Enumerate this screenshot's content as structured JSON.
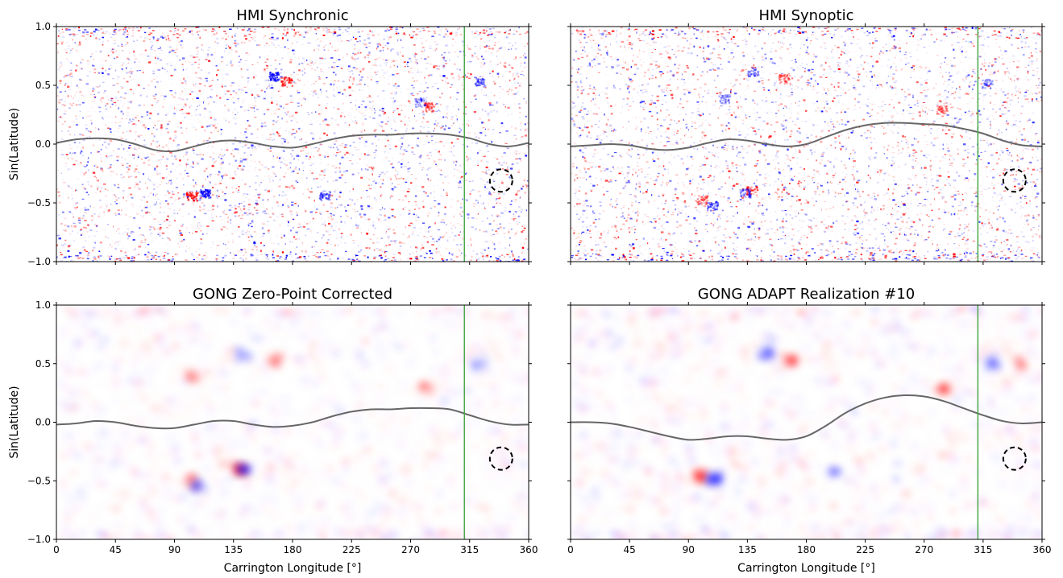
{
  "figure": {
    "colors": {
      "positive": "#ff0000",
      "negative": "#0000ff",
      "neutral_line": "#666666",
      "meridian_line": "#4aa84a",
      "circle": "#000000"
    }
  },
  "chart_data": [
    {
      "type": "heatmap",
      "title": "HMI Synchronic",
      "xlabel": "",
      "ylabel": "Sin(Latitude)",
      "xlim": [
        0,
        360
      ],
      "ylim": [
        -1.0,
        1.0
      ],
      "xticks": [
        "0",
        "45",
        "90",
        "135",
        "180",
        "225",
        "270",
        "315",
        "360"
      ],
      "yticks": [
        "1.0",
        "0.5",
        "0.0",
        "−0.5",
        "−1.0"
      ],
      "vertical_line_x": 311,
      "circle": {
        "x": 339,
        "y": -0.31
      },
      "neutral_line": {
        "x": [
          0,
          15,
          30,
          45,
          60,
          75,
          90,
          105,
          120,
          135,
          150,
          165,
          180,
          195,
          210,
          225,
          240,
          255,
          270,
          285,
          300,
          315,
          330,
          345,
          360
        ],
        "y": [
          0.01,
          0.04,
          0.05,
          0.04,
          0.0,
          -0.05,
          -0.06,
          -0.02,
          0.02,
          0.03,
          0.01,
          -0.02,
          -0.03,
          0.0,
          0.04,
          0.07,
          0.08,
          0.08,
          0.09,
          0.09,
          0.08,
          0.05,
          0.0,
          -0.02,
          0.01
        ]
      },
      "active_regions": [
        {
          "x": 165,
          "y": 0.58,
          "polarity": "negative",
          "strength": 0.9
        },
        {
          "x": 175,
          "y": 0.54,
          "polarity": "positive",
          "strength": 0.8
        },
        {
          "x": 103,
          "y": -0.44,
          "polarity": "positive",
          "strength": 0.9
        },
        {
          "x": 113,
          "y": -0.42,
          "polarity": "negative",
          "strength": 1.0
        },
        {
          "x": 204,
          "y": -0.43,
          "polarity": "negative",
          "strength": 0.6
        },
        {
          "x": 283,
          "y": 0.32,
          "polarity": "positive",
          "strength": 0.6
        },
        {
          "x": 277,
          "y": 0.36,
          "polarity": "negative",
          "strength": 0.4
        },
        {
          "x": 322,
          "y": 0.53,
          "polarity": "negative",
          "strength": 0.5
        }
      ]
    },
    {
      "type": "heatmap",
      "title": "HMI Synoptic",
      "xlabel": "",
      "ylabel": "",
      "xlim": [
        0,
        360
      ],
      "ylim": [
        -1.0,
        1.0
      ],
      "xticks": [
        "0",
        "45",
        "90",
        "135",
        "180",
        "225",
        "270",
        "315",
        "360"
      ],
      "yticks": [
        "1.0",
        "0.5",
        "0.0",
        "−0.5",
        "−1.0"
      ],
      "vertical_line_x": 311,
      "circle": {
        "x": 339,
        "y": -0.31
      },
      "neutral_line": {
        "x": [
          0,
          15,
          30,
          45,
          60,
          75,
          90,
          105,
          120,
          135,
          150,
          165,
          180,
          195,
          210,
          225,
          240,
          255,
          270,
          285,
          300,
          315,
          330,
          345,
          360
        ],
        "y": [
          -0.02,
          -0.01,
          0.0,
          -0.01,
          -0.04,
          -0.05,
          -0.03,
          0.01,
          0.04,
          0.03,
          0.0,
          -0.02,
          0.0,
          0.06,
          0.12,
          0.16,
          0.18,
          0.18,
          0.17,
          0.16,
          0.13,
          0.09,
          0.03,
          -0.01,
          -0.02
        ]
      },
      "active_regions": [
        {
          "x": 138,
          "y": -0.39,
          "polarity": "positive",
          "strength": 0.6
        },
        {
          "x": 133,
          "y": -0.41,
          "polarity": "negative",
          "strength": 0.5
        },
        {
          "x": 100,
          "y": -0.47,
          "polarity": "positive",
          "strength": 0.5
        },
        {
          "x": 108,
          "y": -0.52,
          "polarity": "negative",
          "strength": 0.6
        },
        {
          "x": 163,
          "y": 0.56,
          "polarity": "positive",
          "strength": 0.5
        },
        {
          "x": 139,
          "y": 0.62,
          "polarity": "negative",
          "strength": 0.4
        },
        {
          "x": 283,
          "y": 0.3,
          "polarity": "positive",
          "strength": 0.5
        },
        {
          "x": 318,
          "y": 0.52,
          "polarity": "negative",
          "strength": 0.4
        },
        {
          "x": 117,
          "y": 0.39,
          "polarity": "negative",
          "strength": 0.4
        }
      ]
    },
    {
      "type": "heatmap",
      "title": "GONG Zero-Point Corrected",
      "xlabel": "Carrington Longitude [°]",
      "ylabel": "Sin(Latitude)",
      "xlim": [
        0,
        360
      ],
      "ylim": [
        -1.0,
        1.0
      ],
      "xticks": [
        "0",
        "45",
        "90",
        "135",
        "180",
        "225",
        "270",
        "315",
        "360"
      ],
      "yticks": [
        "1.0",
        "0.5",
        "0.0",
        "−0.5",
        "−1.0"
      ],
      "vertical_line_x": 311,
      "circle": {
        "x": 339,
        "y": -0.31
      },
      "neutral_line": {
        "x": [
          0,
          15,
          30,
          45,
          60,
          75,
          90,
          105,
          120,
          135,
          150,
          165,
          180,
          195,
          210,
          225,
          240,
          255,
          270,
          285,
          300,
          315,
          330,
          345,
          360
        ],
        "y": [
          -0.02,
          -0.01,
          0.01,
          0.0,
          -0.03,
          -0.05,
          -0.05,
          -0.02,
          0.01,
          0.01,
          -0.02,
          -0.04,
          -0.03,
          0.0,
          0.05,
          0.09,
          0.11,
          0.11,
          0.12,
          0.12,
          0.11,
          0.06,
          0.01,
          -0.02,
          -0.02
        ]
      },
      "active_regions": [
        {
          "x": 138,
          "y": -0.38,
          "polarity": "positive",
          "strength": 0.7
        },
        {
          "x": 140,
          "y": -0.38,
          "polarity": "negative",
          "strength": 0.5
        },
        {
          "x": 100,
          "y": -0.48,
          "polarity": "positive",
          "strength": 0.3
        },
        {
          "x": 107,
          "y": -0.52,
          "polarity": "negative",
          "strength": 0.35
        },
        {
          "x": 165,
          "y": 0.55,
          "polarity": "positive",
          "strength": 0.3
        },
        {
          "x": 140,
          "y": 0.6,
          "polarity": "negative",
          "strength": 0.25
        },
        {
          "x": 102,
          "y": 0.42,
          "polarity": "positive",
          "strength": 0.3
        },
        {
          "x": 280,
          "y": 0.32,
          "polarity": "positive",
          "strength": 0.3
        },
        {
          "x": 320,
          "y": 0.52,
          "polarity": "negative",
          "strength": 0.25
        }
      ]
    },
    {
      "type": "heatmap",
      "title": "GONG ADAPT Realization #10",
      "xlabel": "Carrington Longitude [°]",
      "ylabel": "",
      "xlim": [
        0,
        360
      ],
      "ylim": [
        -1.0,
        1.0
      ],
      "xticks": [
        "0",
        "45",
        "90",
        "135",
        "180",
        "225",
        "270",
        "315",
        "360"
      ],
      "yticks": [
        "1.0",
        "0.5",
        "0.0",
        "−0.5",
        "−1.0"
      ],
      "vertical_line_x": 311,
      "circle": {
        "x": 339,
        "y": -0.31
      },
      "neutral_line": {
        "x": [
          0,
          15,
          30,
          45,
          60,
          75,
          90,
          105,
          120,
          135,
          150,
          165,
          180,
          195,
          210,
          225,
          240,
          255,
          270,
          285,
          300,
          315,
          330,
          345,
          360
        ],
        "y": [
          0.0,
          0.0,
          -0.01,
          -0.04,
          -0.08,
          -0.12,
          -0.15,
          -0.14,
          -0.12,
          -0.12,
          -0.14,
          -0.15,
          -0.12,
          -0.03,
          0.08,
          0.16,
          0.21,
          0.23,
          0.22,
          0.18,
          0.12,
          0.06,
          0.01,
          -0.01,
          0.0
        ]
      },
      "active_regions": [
        {
          "x": 98,
          "y": -0.44,
          "polarity": "positive",
          "strength": 0.6
        },
        {
          "x": 108,
          "y": -0.46,
          "polarity": "negative",
          "strength": 0.7
        },
        {
          "x": 166,
          "y": 0.55,
          "polarity": "positive",
          "strength": 0.5
        },
        {
          "x": 147,
          "y": 0.62,
          "polarity": "negative",
          "strength": 0.45
        },
        {
          "x": 282,
          "y": 0.31,
          "polarity": "positive",
          "strength": 0.5
        },
        {
          "x": 320,
          "y": 0.53,
          "polarity": "negative",
          "strength": 0.35
        },
        {
          "x": 340,
          "y": 0.52,
          "polarity": "positive",
          "strength": 0.25
        },
        {
          "x": 200,
          "y": -0.42,
          "polarity": "negative",
          "strength": 0.25
        }
      ]
    }
  ]
}
